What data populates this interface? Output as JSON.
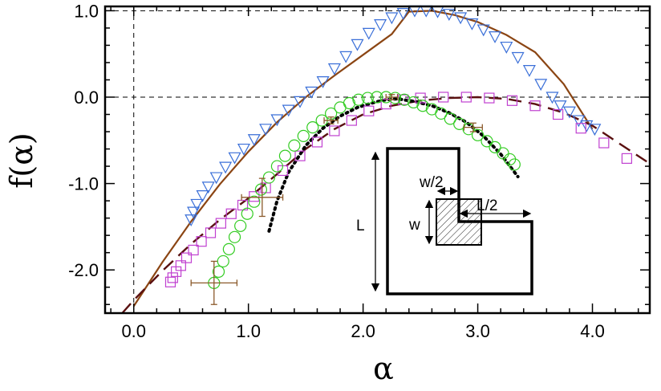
{
  "chart_data": {
    "type": "scatter",
    "title": "",
    "xlabel": "α",
    "ylabel": "f(α)",
    "xlim": [
      -0.25,
      4.5
    ],
    "ylim": [
      -2.5,
      1.05
    ],
    "x_ticks": [
      0.0,
      1.0,
      2.0,
      3.0,
      4.0
    ],
    "x_tick_labels": [
      "0.0",
      "1.0",
      "2.0",
      "3.0",
      "4.0"
    ],
    "y_ticks": [
      1.0,
      0.0,
      -1.0,
      -2.0
    ],
    "y_tick_labels": [
      "1.0",
      "0.0",
      "-1.0",
      "-2.0"
    ],
    "reference_lines": {
      "x": [
        0.0
      ],
      "y": [
        0.0,
        1.0
      ]
    },
    "series": [
      {
        "name": "triangles",
        "marker": "triangle-down",
        "color": "#3a6fd8",
        "x": [
          0.5,
          0.52,
          0.55,
          0.6,
          0.65,
          0.72,
          0.8,
          0.88,
          0.96,
          1.05,
          1.15,
          1.25,
          1.35,
          1.45,
          1.55,
          1.65,
          1.75,
          1.85,
          1.95,
          2.05,
          2.15,
          2.25,
          2.35,
          2.45,
          2.55,
          2.65,
          2.75,
          2.85,
          2.95,
          3.05,
          3.15,
          3.25,
          3.35,
          3.45,
          3.55,
          3.65,
          3.72,
          3.8,
          3.88,
          3.95,
          4.02
        ],
        "y": [
          -1.42,
          -1.33,
          -1.24,
          -1.14,
          -1.04,
          -0.93,
          -0.81,
          -0.7,
          -0.6,
          -0.49,
          -0.37,
          -0.26,
          -0.15,
          -0.05,
          0.06,
          0.18,
          0.33,
          0.47,
          0.61,
          0.74,
          0.84,
          0.92,
          0.97,
          1.0,
          1.0,
          0.99,
          0.96,
          0.92,
          0.85,
          0.78,
          0.7,
          0.58,
          0.46,
          0.31,
          0.15,
          0.0,
          -0.1,
          -0.17,
          -0.27,
          -0.33,
          -0.37
        ]
      },
      {
        "name": "squares",
        "marker": "square",
        "color": "#c040d0",
        "x": [
          0.32,
          0.34,
          0.37,
          0.41,
          0.46,
          0.52,
          0.59,
          0.67,
          0.76,
          0.85,
          0.95,
          1.05,
          1.15,
          1.3,
          1.45,
          1.6,
          1.75,
          1.9,
          2.05,
          2.2,
          2.35,
          2.5,
          2.7,
          2.9,
          3.1,
          3.3,
          3.5,
          3.7,
          3.9,
          4.1,
          4.3
        ],
        "y": [
          -2.14,
          -2.09,
          -2.02,
          -1.95,
          -1.86,
          -1.77,
          -1.67,
          -1.57,
          -1.46,
          -1.35,
          -1.25,
          -1.15,
          -1.05,
          -0.85,
          -0.68,
          -0.52,
          -0.39,
          -0.27,
          -0.16,
          -0.08,
          -0.03,
          -0.01,
          0.0,
          0.0,
          -0.01,
          -0.04,
          -0.1,
          -0.2,
          -0.36,
          -0.53,
          -0.71
        ]
      },
      {
        "name": "circles",
        "marker": "circle",
        "color": "#33cc22",
        "x": [
          0.7,
          0.74,
          0.78,
          0.83,
          0.88,
          0.93,
          0.99,
          1.05,
          1.11,
          1.18,
          1.25,
          1.32,
          1.4,
          1.48,
          1.56,
          1.64,
          1.72,
          1.8,
          1.88,
          1.96,
          2.04,
          2.12,
          2.2,
          2.28,
          2.36,
          2.44,
          2.52,
          2.6,
          2.68,
          2.76,
          2.84,
          2.92,
          3.0,
          3.08,
          3.15,
          3.22,
          3.28,
          3.32
        ],
        "y": [
          -2.15,
          -2.02,
          -1.9,
          -1.76,
          -1.62,
          -1.49,
          -1.35,
          -1.21,
          -1.07,
          -0.93,
          -0.8,
          -0.68,
          -0.56,
          -0.45,
          -0.35,
          -0.27,
          -0.19,
          -0.12,
          -0.07,
          -0.03,
          -0.01,
          0.0,
          0.0,
          -0.01,
          -0.03,
          -0.06,
          -0.1,
          -0.14,
          -0.19,
          -0.25,
          -0.31,
          -0.37,
          -0.44,
          -0.51,
          -0.58,
          -0.65,
          -0.72,
          -0.78
        ]
      }
    ],
    "curves": [
      {
        "name": "solid fit",
        "style": "solid",
        "color": "#8b4513",
        "x": [
          0.0,
          0.25,
          0.5,
          0.75,
          1.0,
          1.25,
          1.5,
          1.75,
          2.0,
          2.25,
          2.4,
          2.6,
          2.8,
          3.0,
          3.25,
          3.5,
          3.75,
          4.0
        ],
        "y": [
          -2.42,
          -1.91,
          -1.44,
          -1.01,
          -0.63,
          -0.29,
          0.0,
          0.25,
          0.49,
          0.73,
          0.99,
          1.0,
          0.95,
          0.87,
          0.72,
          0.52,
          0.15,
          -0.37
        ]
      },
      {
        "name": "dashed fit",
        "style": "dashed",
        "color": "#5a1010",
        "x": [
          -0.1,
          0.0,
          0.25,
          0.5,
          0.75,
          1.0,
          1.25,
          1.5,
          1.75,
          2.0,
          2.25,
          2.5,
          2.75,
          3.0,
          3.25,
          3.5,
          3.75,
          4.0,
          4.25,
          4.5
        ],
        "y": [
          -2.5,
          -2.35,
          -2.01,
          -1.7,
          -1.42,
          -1.17,
          -0.89,
          -0.6,
          -0.37,
          -0.2,
          -0.1,
          -0.04,
          -0.01,
          0.0,
          -0.02,
          -0.08,
          -0.18,
          -0.33,
          -0.55,
          -0.77
        ]
      },
      {
        "name": "dotted fit",
        "style": "dotted",
        "color": "#000000",
        "x": [
          1.18,
          1.25,
          1.35,
          1.5,
          1.65,
          1.8,
          1.95,
          2.1,
          2.2,
          2.3,
          2.45,
          2.6,
          2.75,
          2.9,
          3.05,
          3.2,
          3.35
        ],
        "y": [
          -1.55,
          -1.2,
          -0.87,
          -0.56,
          -0.36,
          -0.22,
          -0.12,
          -0.06,
          -0.03,
          -0.02,
          -0.05,
          -0.1,
          -0.18,
          -0.29,
          -0.45,
          -0.66,
          -0.92
        ]
      }
    ],
    "error_bars": [
      {
        "x": 0.7,
        "y": -2.15,
        "xerr": 0.2,
        "yerr": 0.25,
        "color": "#8b5a2b"
      },
      {
        "x": 1.12,
        "y": -1.16,
        "xerr": 0.18,
        "yerr": 0.22,
        "color": "#8b5a2b"
      },
      {
        "x": 1.72,
        "y": -0.27,
        "xerr": 0.06,
        "yerr": 0.04,
        "color": "#8b5a2b"
      },
      {
        "x": 2.25,
        "y": 0.0,
        "xerr": 0.05,
        "yerr": 0.03,
        "color": "#8b5a2b"
      },
      {
        "x": 2.96,
        "y": -0.35,
        "xerr": 0.08,
        "yerr": 0.05,
        "color": "#8b5a2b"
      }
    ],
    "inset": {
      "labels": {
        "L": "L",
        "w": "w",
        "w_half": "w/2",
        "L_half": "L/2"
      }
    }
  }
}
